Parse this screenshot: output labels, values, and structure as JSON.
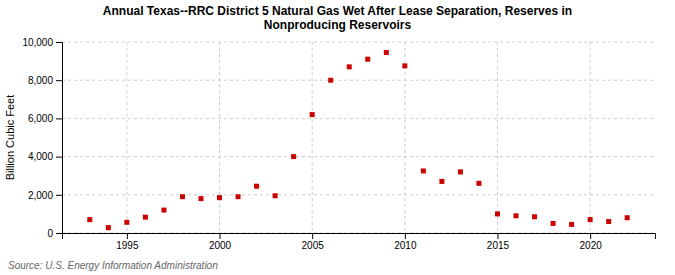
{
  "chart_data": {
    "type": "scatter",
    "title": "Annual Texas--RRC District 5 Natural Gas Wet After Lease Separation, Reserves in\nNonproducing Reservoirs",
    "ylabel": "Billion Cubic Feet",
    "annotation": "Source: U.S. Energy Information Administration",
    "color": "#cc0000",
    "marker": "square",
    "grid": true,
    "x": [
      1993,
      1994,
      1995,
      1996,
      1997,
      1998,
      1999,
      2000,
      2001,
      2002,
      2003,
      2004,
      2005,
      2006,
      2007,
      2008,
      2009,
      2010,
      2011,
      2012,
      2013,
      2014,
      2015,
      2016,
      2017,
      2018,
      2019,
      2020,
      2021,
      2022
    ],
    "values": [
      700,
      280,
      560,
      830,
      1200,
      1900,
      1800,
      1850,
      1900,
      2450,
      1950,
      4000,
      6200,
      8000,
      8700,
      9100,
      9450,
      8750,
      3250,
      2700,
      3200,
      2600,
      1000,
      900,
      850,
      500,
      450,
      700,
      600,
      800
    ],
    "xlim": [
      1991.5,
      2023.5
    ],
    "ylim": [
      0,
      10000
    ],
    "xticks": [
      1995,
      2000,
      2005,
      2010,
      2015,
      2020
    ],
    "yticks": [
      0,
      {
        "value": 2000,
        "label": "2,000"
      },
      {
        "value": 4000,
        "label": "4,000"
      },
      {
        "value": 6000,
        "label": "6,000"
      },
      {
        "value": 8000,
        "label": "8,000"
      },
      {
        "value": 10000,
        "label": "10,000"
      }
    ]
  }
}
